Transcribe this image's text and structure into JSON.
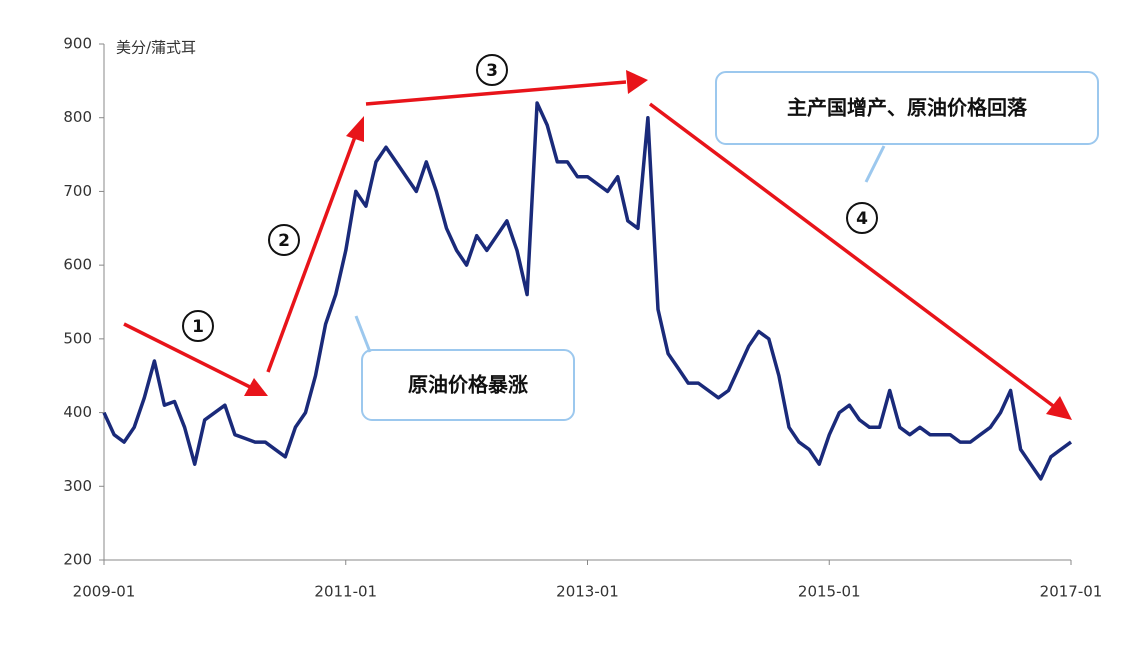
{
  "chart_data": {
    "type": "line",
    "y_label": "美分/蒲式耳",
    "x": [
      "2009-01",
      "2009-02",
      "2009-03",
      "2009-04",
      "2009-05",
      "2009-06",
      "2009-07",
      "2009-08",
      "2009-09",
      "2009-10",
      "2009-11",
      "2009-12",
      "2010-01",
      "2010-02",
      "2010-03",
      "2010-04",
      "2010-05",
      "2010-06",
      "2010-07",
      "2010-08",
      "2010-09",
      "2010-10",
      "2010-11",
      "2010-12",
      "2011-01",
      "2011-02",
      "2011-03",
      "2011-04",
      "2011-05",
      "2011-06",
      "2011-07",
      "2011-08",
      "2011-09",
      "2011-10",
      "2011-11",
      "2011-12",
      "2012-01",
      "2012-02",
      "2012-03",
      "2012-04",
      "2012-05",
      "2012-06",
      "2012-07",
      "2012-08",
      "2012-09",
      "2012-10",
      "2012-11",
      "2012-12",
      "2013-01",
      "2013-02",
      "2013-03",
      "2013-04",
      "2013-05",
      "2013-06",
      "2013-07",
      "2013-08",
      "2013-09",
      "2013-10",
      "2013-11",
      "2013-12",
      "2014-01",
      "2014-02",
      "2014-03",
      "2014-04",
      "2014-05",
      "2014-06",
      "2014-07",
      "2014-08",
      "2014-09",
      "2014-10",
      "2014-11",
      "2014-12",
      "2015-01",
      "2015-02",
      "2015-03",
      "2015-04",
      "2015-05",
      "2015-06",
      "2015-07",
      "2015-08",
      "2015-09",
      "2015-10",
      "2015-11",
      "2015-12",
      "2016-01",
      "2016-02",
      "2016-03",
      "2016-04",
      "2016-05",
      "2016-06",
      "2016-07",
      "2016-08",
      "2016-09",
      "2016-10",
      "2016-11",
      "2016-12",
      "2017-01"
    ],
    "values": [
      400,
      370,
      360,
      380,
      420,
      470,
      410,
      415,
      380,
      330,
      390,
      400,
      410,
      370,
      365,
      360,
      360,
      350,
      340,
      380,
      400,
      450,
      520,
      560,
      620,
      700,
      680,
      740,
      760,
      740,
      720,
      700,
      740,
      700,
      650,
      620,
      600,
      640,
      620,
      640,
      660,
      620,
      560,
      820,
      790,
      740,
      740,
      720,
      720,
      710,
      700,
      720,
      660,
      650,
      800,
      540,
      480,
      460,
      440,
      440,
      430,
      420,
      430,
      460,
      490,
      510,
      500,
      450,
      380,
      360,
      350,
      330,
      370,
      400,
      410,
      390,
      380,
      380,
      430,
      380,
      370,
      380,
      370,
      370,
      370,
      360,
      360,
      370,
      380,
      400,
      430,
      350,
      330,
      310,
      340,
      350,
      360
    ],
    "color": "#1a2a7a",
    "ylim": [
      200,
      900
    ],
    "yticks": [
      200,
      300,
      400,
      500,
      600,
      700,
      800,
      900
    ],
    "xlim": [
      "2009-01",
      "2017-01"
    ],
    "xticks": [
      "2009-01",
      "2011-01",
      "2013-01",
      "2015-01",
      "2017-01"
    ],
    "annotations": [
      "1",
      "2",
      "3",
      "4",
      "原油价格暴涨",
      "主产国增产、原油价格回落"
    ]
  }
}
